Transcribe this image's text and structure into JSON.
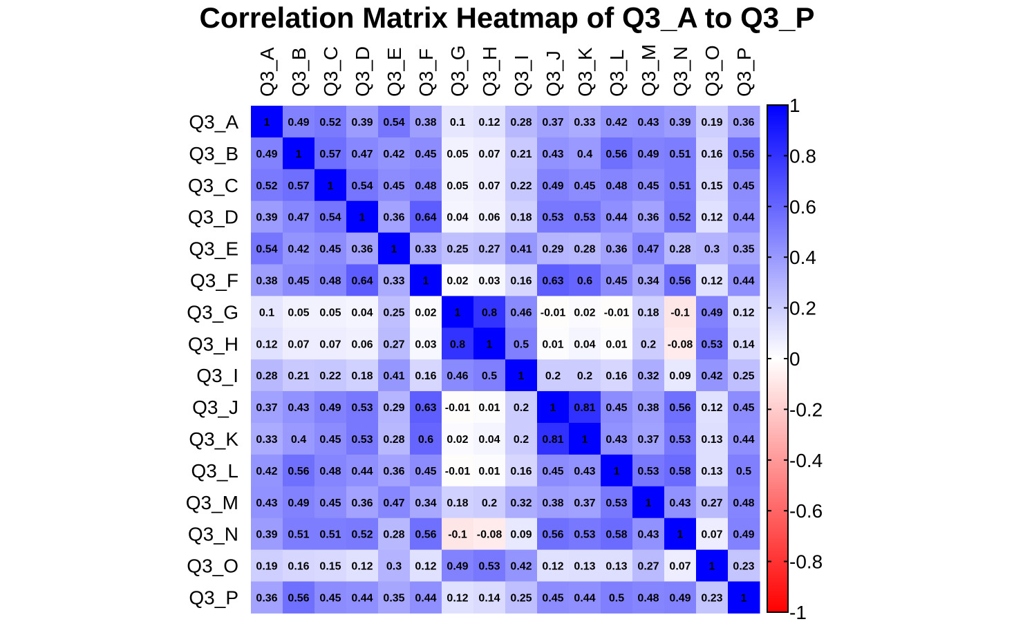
{
  "chart_data": {
    "type": "heatmap",
    "title": "Correlation Matrix Heatmap of Q3_A to Q3_P",
    "variables": [
      "Q3_A",
      "Q3_B",
      "Q3_C",
      "Q3_D",
      "Q3_E",
      "Q3_F",
      "Q3_G",
      "Q3_H",
      "Q3_I",
      "Q3_J",
      "Q3_K",
      "Q3_L",
      "Q3_M",
      "Q3_N",
      "Q3_O",
      "Q3_P"
    ],
    "matrix": [
      [
        1,
        0.49,
        0.52,
        0.39,
        0.54,
        0.38,
        0.1,
        0.12,
        0.28,
        0.37,
        0.33,
        0.42,
        0.43,
        0.39,
        0.19,
        0.36
      ],
      [
        0.49,
        1,
        0.57,
        0.47,
        0.42,
        0.45,
        0.05,
        0.07,
        0.21,
        0.43,
        0.4,
        0.56,
        0.49,
        0.51,
        0.16,
        0.56
      ],
      [
        0.52,
        0.57,
        1,
        0.54,
        0.45,
        0.48,
        0.05,
        0.07,
        0.22,
        0.49,
        0.45,
        0.48,
        0.45,
        0.51,
        0.15,
        0.45
      ],
      [
        0.39,
        0.47,
        0.54,
        1,
        0.36,
        0.64,
        0.04,
        0.06,
        0.18,
        0.53,
        0.53,
        0.44,
        0.36,
        0.52,
        0.12,
        0.44
      ],
      [
        0.54,
        0.42,
        0.45,
        0.36,
        1,
        0.33,
        0.25,
        0.27,
        0.41,
        0.29,
        0.28,
        0.36,
        0.47,
        0.28,
        0.3,
        0.35
      ],
      [
        0.38,
        0.45,
        0.48,
        0.64,
        0.33,
        1,
        0.02,
        0.03,
        0.16,
        0.63,
        0.6,
        0.45,
        0.34,
        0.56,
        0.12,
        0.44
      ],
      [
        0.1,
        0.05,
        0.05,
        0.04,
        0.25,
        0.02,
        1,
        0.8,
        0.46,
        -0.01,
        0.02,
        -0.01,
        0.18,
        -0.1,
        0.49,
        0.12
      ],
      [
        0.12,
        0.07,
        0.07,
        0.06,
        0.27,
        0.03,
        0.8,
        1,
        0.5,
        0.01,
        0.04,
        0.01,
        0.2,
        -0.08,
        0.53,
        0.14
      ],
      [
        0.28,
        0.21,
        0.22,
        0.18,
        0.41,
        0.16,
        0.46,
        0.5,
        1,
        0.2,
        0.2,
        0.16,
        0.32,
        0.09,
        0.42,
        0.25
      ],
      [
        0.37,
        0.43,
        0.49,
        0.53,
        0.29,
        0.63,
        -0.01,
        0.01,
        0.2,
        1,
        0.81,
        0.45,
        0.38,
        0.56,
        0.12,
        0.45
      ],
      [
        0.33,
        0.4,
        0.45,
        0.53,
        0.28,
        0.6,
        0.02,
        0.04,
        0.2,
        0.81,
        1,
        0.43,
        0.37,
        0.53,
        0.13,
        0.44
      ],
      [
        0.42,
        0.56,
        0.48,
        0.44,
        0.36,
        0.45,
        -0.01,
        0.01,
        0.16,
        0.45,
        0.43,
        1,
        0.53,
        0.58,
        0.13,
        0.5
      ],
      [
        0.43,
        0.49,
        0.45,
        0.36,
        0.47,
        0.34,
        0.18,
        0.2,
        0.32,
        0.38,
        0.37,
        0.53,
        1,
        0.43,
        0.27,
        0.48
      ],
      [
        0.39,
        0.51,
        0.51,
        0.52,
        0.28,
        0.56,
        -0.1,
        -0.08,
        0.09,
        0.56,
        0.53,
        0.58,
        0.43,
        1,
        0.07,
        0.49
      ],
      [
        0.19,
        0.16,
        0.15,
        0.12,
        0.3,
        0.12,
        0.49,
        0.53,
        0.42,
        0.12,
        0.13,
        0.13,
        0.27,
        0.07,
        1,
        0.23
      ],
      [
        0.36,
        0.56,
        0.45,
        0.44,
        0.35,
        0.44,
        0.12,
        0.14,
        0.25,
        0.45,
        0.44,
        0.5,
        0.48,
        0.49,
        0.23,
        1
      ]
    ],
    "colorbar": {
      "range": [
        -1,
        1
      ],
      "ticks": [
        1,
        0.8,
        0.6,
        0.4,
        0.2,
        0,
        -0.2,
        -0.4,
        -0.6,
        -0.8,
        -1
      ],
      "tick_labels": [
        "1",
        "0.8",
        "0.6",
        "0.4",
        "0.2",
        "0",
        "-0.2",
        "-0.4",
        "-0.6",
        "-0.8",
        "-1"
      ],
      "colors": {
        "negative": "#FF0000",
        "zero": "#FFFFFF",
        "positive": "#0000FF"
      }
    }
  }
}
